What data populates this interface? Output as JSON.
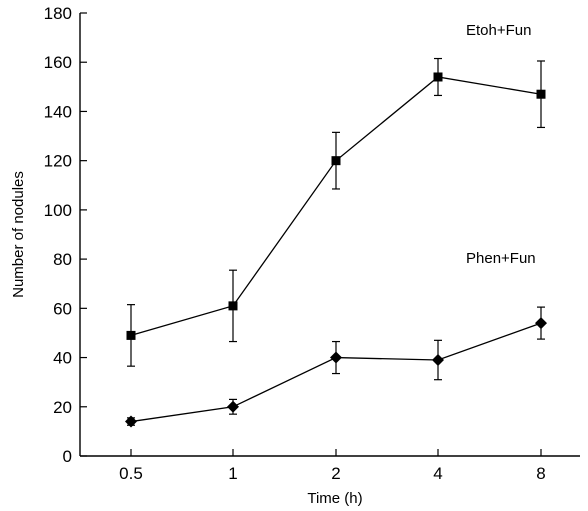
{
  "chart_data": {
    "type": "line",
    "xlabel": "Time (h)",
    "ylabel": "Number of nodules",
    "categories": [
      "0.5",
      "1",
      "2",
      "4",
      "8"
    ],
    "ylim": [
      0,
      180
    ],
    "yticks": [
      0,
      20,
      40,
      60,
      80,
      100,
      120,
      140,
      160,
      180
    ],
    "grid": false,
    "series": [
      {
        "name": "Etoh+Fun",
        "marker": "square",
        "values": [
          49,
          61,
          120,
          154,
          147
        ],
        "errors": [
          12.5,
          14.5,
          11.5,
          7.5,
          13.5
        ],
        "color": "#000000"
      },
      {
        "name": "Phen+Fun",
        "marker": "diamond",
        "values": [
          14,
          20,
          40,
          39,
          54
        ],
        "errors": [
          1.5,
          3,
          6.5,
          8,
          6.5
        ],
        "color": "#000000"
      }
    ]
  }
}
